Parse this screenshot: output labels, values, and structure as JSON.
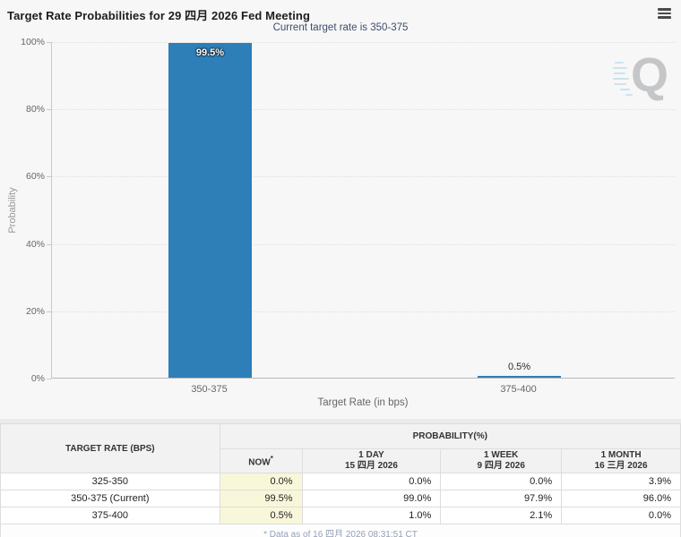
{
  "header": {
    "title": "Target Rate Probabilities for 29 四月 2026 Fed Meeting",
    "subtitle": "Current target rate is 350-375",
    "menu_icon": "hamburger-icon"
  },
  "colors": {
    "bar": "#2e7eb8",
    "now_highlight": "#f9f7da",
    "subtitle_text": "#3e4c6d"
  },
  "watermark_letter": "Q",
  "chart_data": {
    "type": "bar",
    "title": "Target Rate Probabilities for 29 四月 2026 Fed Meeting",
    "subtitle": "Current target rate is 350-375",
    "categories": [
      "350-375",
      "375-400"
    ],
    "values": [
      99.5,
      0.5
    ],
    "value_labels": [
      "99.5%",
      "0.5%"
    ],
    "xlabel": "Target Rate (in bps)",
    "ylabel": "Probability",
    "ylim": [
      0,
      100
    ],
    "yticks": [
      "0%",
      "20%",
      "40%",
      "60%",
      "80%",
      "100%"
    ],
    "grid": "horizontal dotted",
    "legend": "none",
    "bar_color": "#2e7eb8"
  },
  "table": {
    "col1_header": "TARGET RATE (BPS)",
    "group_header": "PROBABILITY(%)",
    "subheaders": [
      {
        "label": "NOW",
        "suffix": "*",
        "date": ""
      },
      {
        "label": "1 DAY",
        "date": "15 四月 2026"
      },
      {
        "label": "1 WEEK",
        "date": "9 四月 2026"
      },
      {
        "label": "1 MONTH",
        "date": "16 三月 2026"
      }
    ],
    "rows": [
      {
        "rate": "325-350",
        "now": "0.0%",
        "day": "0.0%",
        "week": "0.0%",
        "month": "3.9%"
      },
      {
        "rate": "350-375 (Current)",
        "now": "99.5%",
        "day": "99.0%",
        "week": "97.9%",
        "month": "96.0%"
      },
      {
        "rate": "375-400",
        "now": "0.5%",
        "day": "1.0%",
        "week": "2.1%",
        "month": "0.0%"
      }
    ],
    "footnote": "* Data as of 16 四月 2026 08:31:51 CT"
  }
}
